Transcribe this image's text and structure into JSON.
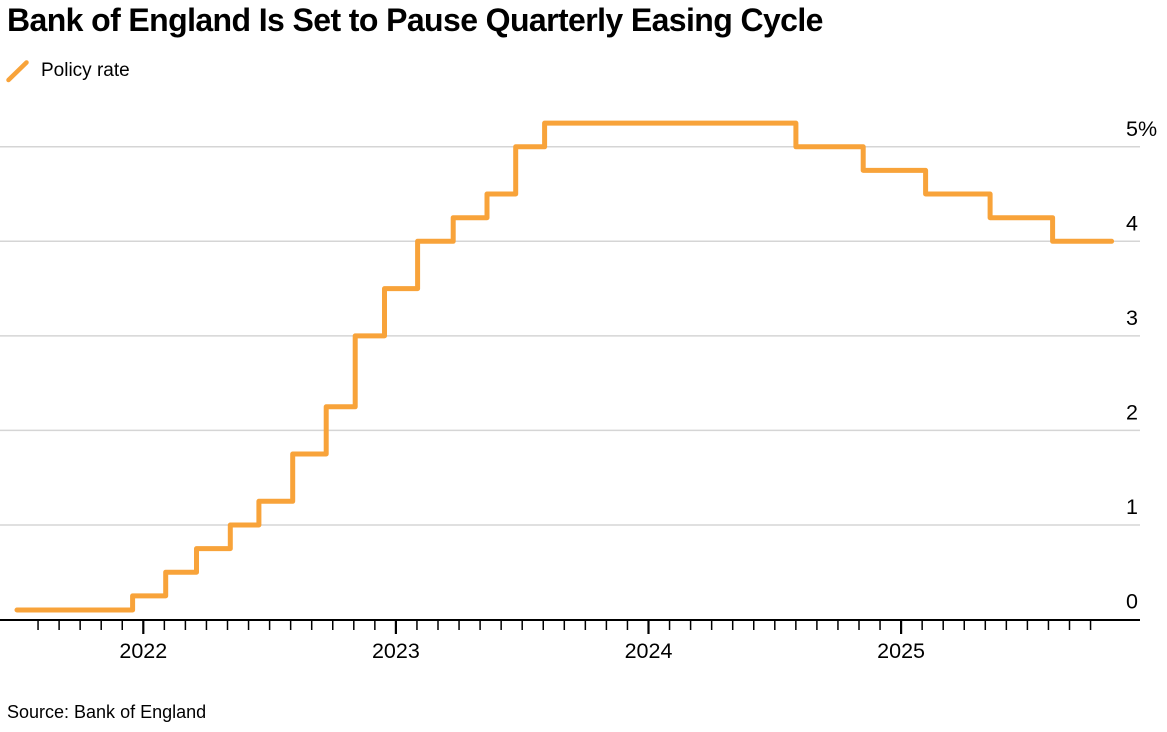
{
  "header": {
    "title": "Bank of England Is Set to Pause Quarterly Easing Cycle",
    "legend": {
      "label": "Policy rate",
      "color": "#F8A33A"
    }
  },
  "footer": {
    "source": "Source: Bank of England"
  },
  "chart_data": {
    "type": "line",
    "subtype": "step",
    "title": "Bank of England Is Set to Pause Quarterly Easing Cycle",
    "xlabel": "",
    "ylabel": "",
    "unit": "%",
    "legend_position": "top-left",
    "legend_entries": [
      "Policy rate"
    ],
    "grid": "horizontal",
    "y_axis_side": "right",
    "y_range": [
      0,
      5.6
    ],
    "x_range": [
      "2021-07",
      "2025-11"
    ],
    "x_ticks": [
      {
        "label": "2022",
        "date": "2022-01-01"
      },
      {
        "label": "2023",
        "date": "2023-01-01"
      },
      {
        "label": "2024",
        "date": "2024-01-01"
      },
      {
        "label": "2025",
        "date": "2025-01-01"
      }
    ],
    "y_ticks": [
      {
        "label": "5%",
        "value": 5
      },
      {
        "label": "4",
        "value": 4
      },
      {
        "label": "3",
        "value": 3
      },
      {
        "label": "2",
        "value": 2
      },
      {
        "label": "1",
        "value": 1
      },
      {
        "label": "0",
        "value": 0
      }
    ],
    "series": [
      {
        "name": "Policy rate",
        "color": "#F8A33A",
        "end_date": "2025-11-01",
        "steps": [
          {
            "date": "2021-07-01",
            "rate": 0.1
          },
          {
            "date": "2021-12-16",
            "rate": 0.25
          },
          {
            "date": "2022-02-03",
            "rate": 0.5
          },
          {
            "date": "2022-03-17",
            "rate": 0.75
          },
          {
            "date": "2022-05-05",
            "rate": 1.0
          },
          {
            "date": "2022-06-16",
            "rate": 1.25
          },
          {
            "date": "2022-08-04",
            "rate": 1.75
          },
          {
            "date": "2022-09-22",
            "rate": 2.25
          },
          {
            "date": "2022-11-03",
            "rate": 3.0
          },
          {
            "date": "2022-12-15",
            "rate": 3.5
          },
          {
            "date": "2023-02-02",
            "rate": 4.0
          },
          {
            "date": "2023-03-23",
            "rate": 4.25
          },
          {
            "date": "2023-05-11",
            "rate": 4.5
          },
          {
            "date": "2023-06-22",
            "rate": 5.0
          },
          {
            "date": "2023-08-03",
            "rate": 5.25
          },
          {
            "date": "2024-08-01",
            "rate": 5.0
          },
          {
            "date": "2024-11-07",
            "rate": 4.75
          },
          {
            "date": "2025-02-06",
            "rate": 4.5
          },
          {
            "date": "2025-05-08",
            "rate": 4.25
          },
          {
            "date": "2025-08-07",
            "rate": 4.0
          }
        ]
      }
    ],
    "style": {
      "line_width": 5,
      "grid_color": "#D5D5D5",
      "axis_color": "#000000",
      "text_color": "#000000",
      "background": "#FFFFFF"
    }
  }
}
